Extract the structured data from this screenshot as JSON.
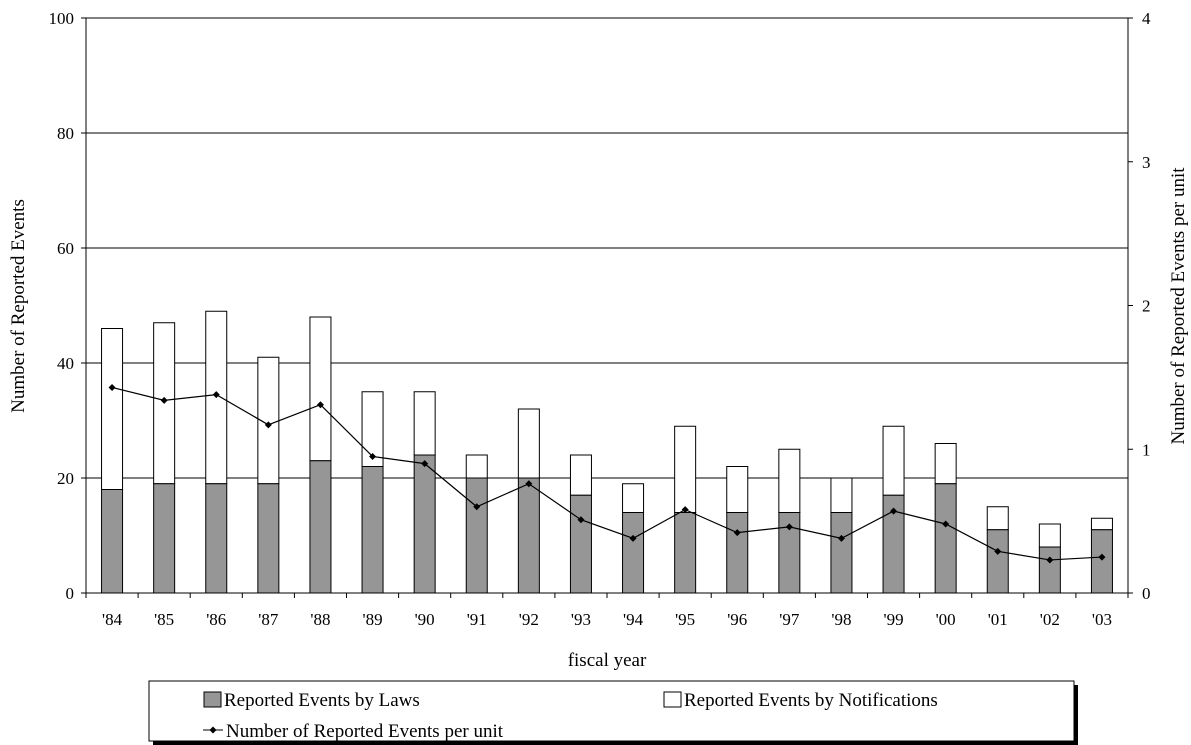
{
  "chart_data": {
    "type": "bar",
    "title": "",
    "xlabel": "fiscal year",
    "ylabel": "Number of Reported Events",
    "y2label": "Number of Reported Events per unit",
    "categories": [
      "'84",
      "'85",
      "'86",
      "'87",
      "'88",
      "'89",
      "'90",
      "'91",
      "'92",
      "'93",
      "'94",
      "'95",
      "'96",
      "'97",
      "'98",
      "'99",
      "'00",
      "'01",
      "'02",
      "'03"
    ],
    "ylim": [
      0,
      100
    ],
    "yticks": [
      "0",
      "20",
      "40",
      "60",
      "80",
      "100"
    ],
    "y2lim": [
      0,
      4
    ],
    "y2ticks": [
      "0",
      "1",
      "2",
      "3",
      "4"
    ],
    "grid": true,
    "stacked": true,
    "series": [
      {
        "name": "Reported Events by Laws",
        "kind": "bar",
        "axis": "left",
        "color": "#969696",
        "values": [
          18,
          19,
          19,
          19,
          23,
          22,
          24,
          20,
          20,
          17,
          14,
          14,
          14,
          14,
          14,
          17,
          19,
          11,
          8,
          11
        ]
      },
      {
        "name": "Reported Events by Notifications",
        "kind": "bar",
        "axis": "left",
        "color": "#ffffff",
        "values": [
          28,
          28,
          30,
          22,
          25,
          13,
          11,
          4,
          12,
          7,
          5,
          15,
          8,
          11,
          6,
          12,
          7,
          4,
          4,
          2
        ]
      },
      {
        "name": "Number of Reported Events per unit",
        "kind": "line",
        "axis": "right",
        "color": "#000000",
        "marker": "diamond",
        "values": [
          1.43,
          1.34,
          1.38,
          1.17,
          1.31,
          0.95,
          0.9,
          0.6,
          0.76,
          0.51,
          0.38,
          0.58,
          0.42,
          0.46,
          0.38,
          0.57,
          0.48,
          0.29,
          0.23,
          0.25
        ]
      }
    ],
    "legend": {
      "placement": "bottom",
      "items": [
        "Reported Events by Laws",
        "Reported Events by Notifications",
        "Number of Reported Events per unit"
      ]
    }
  }
}
